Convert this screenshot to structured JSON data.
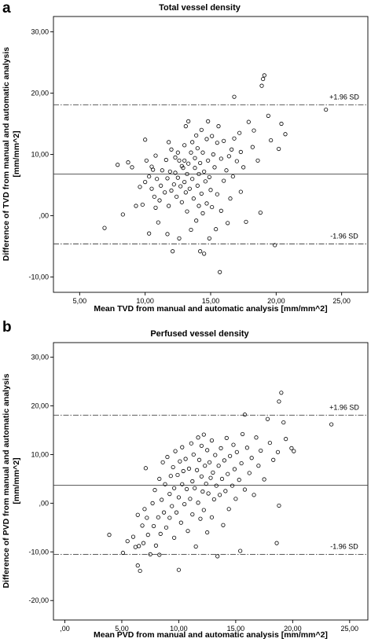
{
  "chart_data": [
    {
      "type": "scatter",
      "panel": "a",
      "title": "Total vessel density",
      "xlabel": "Mean TVD from manual and automatic analysis [mm/mm^2]",
      "ylabel": [
        "Difference of TVD from manual and automatic analysis",
        "[mm/mm^2]"
      ],
      "xlim": [
        3.0,
        27.0
      ],
      "ylim": [
        -12.5,
        32.5
      ],
      "xticks": [
        5,
        10,
        15,
        20,
        25
      ],
      "xtick_labels": [
        "5,00",
        "10,00",
        "15,00",
        "20,00",
        "25,00"
      ],
      "yticks": [
        -10,
        0,
        10,
        20,
        30
      ],
      "ytick_labels": [
        "-10,00",
        ",00",
        "10,00",
        "20,00",
        "30,00"
      ],
      "grid": false,
      "mean_diff": 6.8,
      "upper_loa": 18.1,
      "lower_loa": -4.6,
      "upper_label": "+1.96 SD",
      "lower_label": "-1.96 SD",
      "points": [
        [
          6.9,
          -2.0
        ],
        [
          7.9,
          8.3
        ],
        [
          8.3,
          0.2
        ],
        [
          8.7,
          8.7
        ],
        [
          9.0,
          7.9
        ],
        [
          9.3,
          1.6
        ],
        [
          9.6,
          4.7
        ],
        [
          9.8,
          1.8
        ],
        [
          10.0,
          5.5
        ],
        [
          10.0,
          12.4
        ],
        [
          10.1,
          9.0
        ],
        [
          10.3,
          -2.9
        ],
        [
          10.3,
          6.4
        ],
        [
          10.5,
          8.0
        ],
        [
          10.5,
          4.4
        ],
        [
          10.6,
          7.5
        ],
        [
          10.7,
          3.1
        ],
        [
          10.8,
          1.3
        ],
        [
          10.8,
          9.8
        ],
        [
          10.9,
          6.0
        ],
        [
          11.0,
          -1.1
        ],
        [
          11.1,
          2.5
        ],
        [
          11.2,
          4.9
        ],
        [
          11.3,
          7.4
        ],
        [
          11.5,
          3.8
        ],
        [
          11.6,
          9.1
        ],
        [
          11.7,
          -3.0
        ],
        [
          11.7,
          6.1
        ],
        [
          11.8,
          12.0
        ],
        [
          11.8,
          1.6
        ],
        [
          11.9,
          7.2
        ],
        [
          12.0,
          10.8
        ],
        [
          12.0,
          4.1
        ],
        [
          12.1,
          -5.8
        ],
        [
          12.2,
          5.1
        ],
        [
          12.3,
          7.0
        ],
        [
          12.3,
          9.5
        ],
        [
          12.4,
          3.1
        ],
        [
          12.5,
          10.3
        ],
        [
          12.5,
          6.2
        ],
        [
          12.6,
          -3.7
        ],
        [
          12.6,
          9.0
        ],
        [
          12.7,
          4.8
        ],
        [
          12.8,
          8.1
        ],
        [
          12.8,
          2.2
        ],
        [
          12.9,
          7.8
        ],
        [
          13.0,
          11.5
        ],
        [
          13.0,
          5.5
        ],
        [
          13.0,
          9.0
        ],
        [
          13.1,
          14.6
        ],
        [
          13.1,
          3.8
        ],
        [
          13.2,
          0.7
        ],
        [
          13.2,
          6.8
        ],
        [
          13.3,
          15.4
        ],
        [
          13.3,
          8.5
        ],
        [
          13.4,
          4.4
        ],
        [
          13.5,
          -2.3
        ],
        [
          13.5,
          10.3
        ],
        [
          13.6,
          12.0
        ],
        [
          13.6,
          6.0
        ],
        [
          13.7,
          2.8
        ],
        [
          13.8,
          7.8
        ],
        [
          13.8,
          9.4
        ],
        [
          13.9,
          -0.8
        ],
        [
          13.9,
          13.1
        ],
        [
          14.0,
          4.9
        ],
        [
          14.0,
          11.0
        ],
        [
          14.1,
          6.8
        ],
        [
          14.1,
          1.6
        ],
        [
          14.2,
          8.6
        ],
        [
          14.2,
          -5.8
        ],
        [
          14.3,
          14.0
        ],
        [
          14.3,
          3.6
        ],
        [
          14.4,
          10.3
        ],
        [
          14.4,
          0.4
        ],
        [
          14.5,
          7.2
        ],
        [
          14.5,
          -6.2
        ],
        [
          14.6,
          5.6
        ],
        [
          14.7,
          12.5
        ],
        [
          14.7,
          2.0
        ],
        [
          14.8,
          9.0
        ],
        [
          14.8,
          15.4
        ],
        [
          14.9,
          -3.7
        ],
        [
          14.9,
          6.3
        ],
        [
          15.0,
          4.2
        ],
        [
          15.1,
          13.0
        ],
        [
          15.1,
          1.4
        ],
        [
          15.2,
          10.0
        ],
        [
          15.3,
          7.9
        ],
        [
          15.4,
          -2.2
        ],
        [
          15.5,
          11.9
        ],
        [
          15.5,
          3.5
        ],
        [
          15.6,
          14.6
        ],
        [
          15.7,
          -9.2
        ],
        [
          15.8,
          9.3
        ],
        [
          15.8,
          0.8
        ],
        [
          16.0,
          5.7
        ],
        [
          16.0,
          12.2
        ],
        [
          16.2,
          7.4
        ],
        [
          16.3,
          -1.2
        ],
        [
          16.4,
          9.7
        ],
        [
          16.5,
          2.8
        ],
        [
          16.6,
          10.8
        ],
        [
          16.7,
          6.4
        ],
        [
          16.8,
          19.4
        ],
        [
          16.8,
          12.6
        ],
        [
          17.0,
          8.9
        ],
        [
          17.2,
          13.5
        ],
        [
          17.3,
          3.9
        ],
        [
          17.3,
          10.4
        ],
        [
          17.5,
          7.9
        ],
        [
          17.7,
          -1.0
        ],
        [
          17.9,
          15.3
        ],
        [
          18.2,
          11.2
        ],
        [
          18.3,
          13.9
        ],
        [
          18.6,
          9.0
        ],
        [
          18.8,
          0.5
        ],
        [
          18.9,
          21.2
        ],
        [
          19.0,
          22.3
        ],
        [
          19.1,
          22.9
        ],
        [
          19.4,
          16.3
        ],
        [
          19.6,
          12.3
        ],
        [
          19.9,
          -4.8
        ],
        [
          20.2,
          10.9
        ],
        [
          20.4,
          15.0
        ],
        [
          20.7,
          13.3
        ],
        [
          23.8,
          17.3
        ]
      ]
    },
    {
      "type": "scatter",
      "panel": "b",
      "title": "Perfused vessel density",
      "xlabel": "Mean PVD from manual and automatic analysis [mm/mm^2]",
      "ylabel": [
        "Difference of PVD from manual and automatic analysis",
        "[mm/mm^2]"
      ],
      "xlim": [
        -1.0,
        26.6
      ],
      "ylim": [
        -24.0,
        33.0
      ],
      "xticks": [
        0,
        5,
        10,
        15,
        20,
        25
      ],
      "xtick_labels": [
        ",00",
        "5,00",
        "10,00",
        "15,00",
        "20,00",
        "25,00"
      ],
      "yticks": [
        -20,
        -10,
        0,
        10,
        20,
        30
      ],
      "ytick_labels": [
        "-20,00",
        "-10,00",
        ",00",
        "10,00",
        "20,00",
        "30,00"
      ],
      "grid": false,
      "mean_diff": 3.7,
      "upper_loa": 18.1,
      "lower_loa": -10.5,
      "upper_label": "+1.96 SD",
      "lower_label": "-1.96 SD",
      "points": [
        [
          3.9,
          -6.5
        ],
        [
          5.1,
          -10.2
        ],
        [
          5.5,
          -7.8
        ],
        [
          6.0,
          -6.9
        ],
        [
          6.2,
          -9.0
        ],
        [
          6.4,
          -2.4
        ],
        [
          6.4,
          -12.8
        ],
        [
          6.5,
          -8.8
        ],
        [
          6.6,
          -13.9
        ],
        [
          6.8,
          -4.6
        ],
        [
          6.9,
          -8.2
        ],
        [
          7.0,
          -1.2
        ],
        [
          7.1,
          7.2
        ],
        [
          7.2,
          -3.0
        ],
        [
          7.3,
          -6.5
        ],
        [
          7.5,
          -10.5
        ],
        [
          7.7,
          0.0
        ],
        [
          7.8,
          -4.7
        ],
        [
          7.9,
          2.7
        ],
        [
          8.0,
          -8.7
        ],
        [
          8.2,
          -2.9
        ],
        [
          8.3,
          -10.6
        ],
        [
          8.3,
          5.0
        ],
        [
          8.4,
          -6.3
        ],
        [
          8.5,
          0.7
        ],
        [
          8.6,
          8.4
        ],
        [
          8.7,
          -1.9
        ],
        [
          8.8,
          3.9
        ],
        [
          8.9,
          -5.0
        ],
        [
          9.0,
          9.5
        ],
        [
          9.2,
          -3.0
        ],
        [
          9.2,
          1.9
        ],
        [
          9.3,
          5.6
        ],
        [
          9.4,
          -0.6
        ],
        [
          9.5,
          7.4
        ],
        [
          9.6,
          -7.1
        ],
        [
          9.6,
          3.1
        ],
        [
          9.7,
          10.7
        ],
        [
          9.8,
          -1.9
        ],
        [
          9.9,
          5.8
        ],
        [
          10.0,
          -13.7
        ],
        [
          10.0,
          1.2
        ],
        [
          10.1,
          8.6
        ],
        [
          10.2,
          -4.0
        ],
        [
          10.3,
          3.9
        ],
        [
          10.3,
          11.5
        ],
        [
          10.4,
          6.6
        ],
        [
          10.5,
          -0.2
        ],
        [
          10.6,
          9.1
        ],
        [
          10.7,
          2.9
        ],
        [
          10.8,
          -5.7
        ],
        [
          10.9,
          7.1
        ],
        [
          11.0,
          0.9
        ],
        [
          11.1,
          12.3
        ],
        [
          11.2,
          4.5
        ],
        [
          11.2,
          -2.3
        ],
        [
          11.3,
          10.0
        ],
        [
          11.4,
          3.1
        ],
        [
          11.5,
          -8.9
        ],
        [
          11.6,
          6.8
        ],
        [
          11.7,
          13.5
        ],
        [
          11.7,
          0.1
        ],
        [
          11.8,
          8.9
        ],
        [
          11.9,
          -3.2
        ],
        [
          12.0,
          5.5
        ],
        [
          12.0,
          11.8
        ],
        [
          12.1,
          2.4
        ],
        [
          12.2,
          14.1
        ],
        [
          12.2,
          -1.4
        ],
        [
          12.3,
          7.7
        ],
        [
          12.4,
          4.0
        ],
        [
          12.5,
          10.9
        ],
        [
          12.5,
          -6.0
        ],
        [
          12.6,
          2.0
        ],
        [
          12.7,
          8.4
        ],
        [
          12.8,
          5.2
        ],
        [
          12.9,
          12.9
        ],
        [
          12.9,
          -2.9
        ],
        [
          13.0,
          6.3
        ],
        [
          13.1,
          0.8
        ],
        [
          13.2,
          9.9
        ],
        [
          13.3,
          3.6
        ],
        [
          13.4,
          -10.9
        ],
        [
          13.5,
          7.7
        ],
        [
          13.6,
          1.7
        ],
        [
          13.7,
          11.3
        ],
        [
          13.8,
          5.0
        ],
        [
          13.9,
          -4.5
        ],
        [
          14.0,
          8.8
        ],
        [
          14.1,
          2.5
        ],
        [
          14.2,
          13.4
        ],
        [
          14.3,
          6.0
        ],
        [
          14.4,
          -1.2
        ],
        [
          14.5,
          9.7
        ],
        [
          14.7,
          3.6
        ],
        [
          14.8,
          12.0
        ],
        [
          14.9,
          7.0
        ],
        [
          15.0,
          0.9
        ],
        [
          15.1,
          10.5
        ],
        [
          15.3,
          4.8
        ],
        [
          15.4,
          -9.8
        ],
        [
          15.5,
          8.2
        ],
        [
          15.6,
          14.2
        ],
        [
          15.8,
          18.2
        ],
        [
          15.8,
          2.8
        ],
        [
          16.0,
          11.4
        ],
        [
          16.2,
          6.2
        ],
        [
          16.4,
          9.3
        ],
        [
          16.6,
          1.7
        ],
        [
          16.8,
          13.5
        ],
        [
          17.0,
          7.7
        ],
        [
          17.2,
          10.8
        ],
        [
          17.5,
          4.9
        ],
        [
          17.8,
          17.3
        ],
        [
          18.0,
          12.4
        ],
        [
          18.3,
          8.9
        ],
        [
          18.6,
          -8.2
        ],
        [
          18.7,
          10.5
        ],
        [
          18.8,
          -0.5
        ],
        [
          18.8,
          20.9
        ],
        [
          19.0,
          22.7
        ],
        [
          19.2,
          16.6
        ],
        [
          19.4,
          13.2
        ],
        [
          19.9,
          11.3
        ],
        [
          20.1,
          10.7
        ],
        [
          23.4,
          16.2
        ]
      ]
    }
  ]
}
